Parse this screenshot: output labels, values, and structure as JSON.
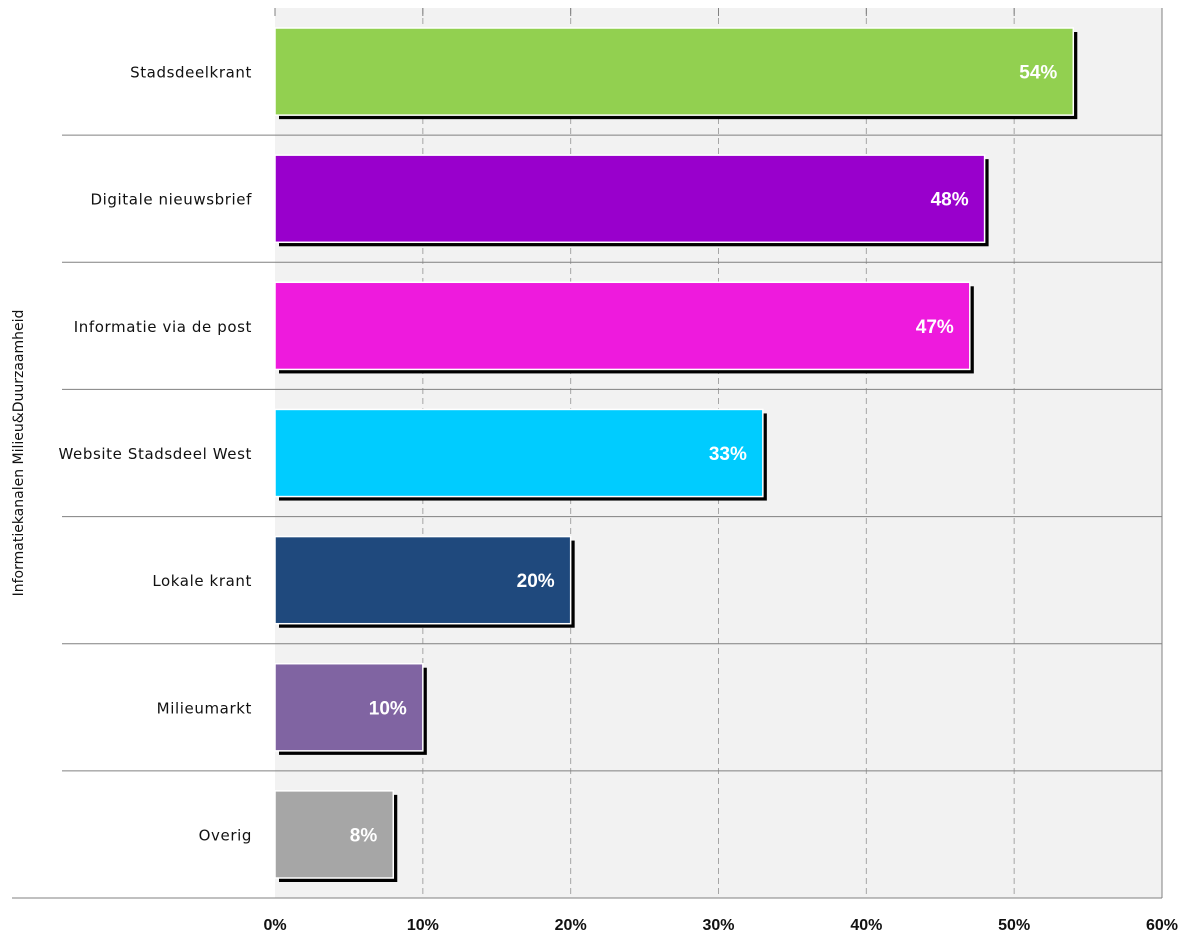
{
  "chart_data": {
    "type": "bar",
    "orientation": "horizontal",
    "categories": [
      "Stadsdeelkrant",
      "Digitale nieuwsbrief",
      "Informatie via de post",
      "Website Stadsdeel West",
      "Lokale krant",
      "Milieumarkt",
      "Overig"
    ],
    "values": [
      54,
      48,
      47,
      33,
      20,
      10,
      8
    ],
    "value_labels": [
      "54%",
      "48%",
      "47%",
      "33%",
      "20%",
      "10%",
      "8%"
    ],
    "colors": [
      "#92D050",
      "#9900CC",
      "#EE1ADD",
      "#00CCFF",
      "#1F497D",
      "#8064A2",
      "#A6A6A6"
    ],
    "xlim": [
      0,
      60
    ],
    "xticks": [
      "0%",
      "10%",
      "20%",
      "30%",
      "40%",
      "50%",
      "60%"
    ],
    "xlabel": "",
    "ylabel": "Informatiekanalen Milieu&Duurzaamheid",
    "title": "",
    "grid": true,
    "legend": "none"
  },
  "style": {
    "plot_background": "#F2F2F2",
    "grid_color": "#A6A6A6",
    "axis_line_color": "#808080",
    "shadow_color": "#000000"
  }
}
